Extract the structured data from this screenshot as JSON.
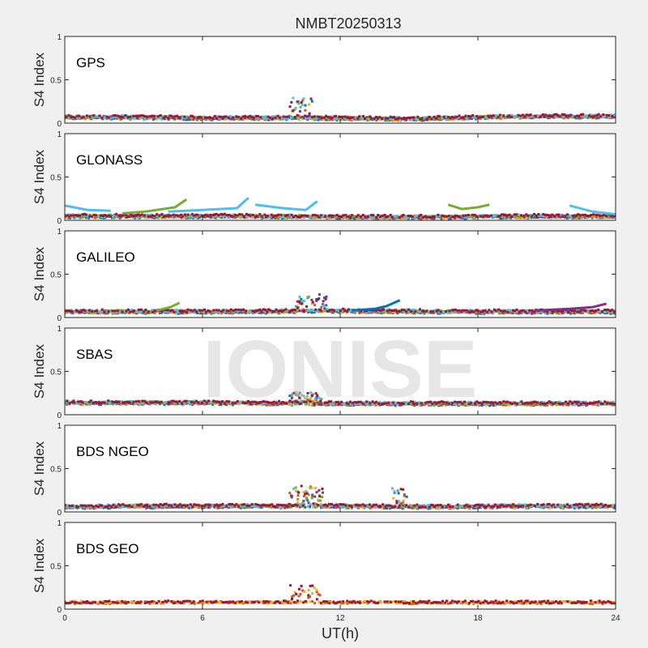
{
  "figure": {
    "title": "NMBT20250313",
    "watermark": "IONISE",
    "xlabel": "UT(h)",
    "ylabel": "S4 Index",
    "background_color": "#f0f0f0",
    "axes_color": "#ffffff"
  },
  "chart_data": [
    {
      "type": "scatter",
      "panel": "GPS",
      "xlim": [
        0,
        24
      ],
      "ylim": [
        0,
        1
      ],
      "xticks": [
        "0",
        "6",
        "12",
        "18",
        "24"
      ],
      "yticks": [
        "0",
        "0.5",
        "1"
      ],
      "baseline": [
        [
          0,
          0.07
        ],
        [
          3,
          0.07
        ],
        [
          6,
          0.06
        ],
        [
          9,
          0.06
        ],
        [
          12,
          0.06
        ],
        [
          15,
          0.05
        ],
        [
          18,
          0.07
        ],
        [
          21,
          0.08
        ],
        [
          24,
          0.08
        ]
      ],
      "events": [
        [
          9.8,
          10.8,
          0.22,
          0.12
        ]
      ],
      "series": [
        {
          "color": "#0072BD",
          "values": []
        },
        {
          "color": "#D95319",
          "values": []
        },
        {
          "color": "#EDB120",
          "values": []
        },
        {
          "color": "#7E2F8E",
          "values": []
        },
        {
          "color": "#77AC30",
          "values": []
        },
        {
          "color": "#4DBEEE",
          "values": []
        },
        {
          "color": "#A2142F",
          "values": []
        }
      ]
    },
    {
      "type": "scatter",
      "panel": "GLONASS",
      "xlim": [
        0,
        24
      ],
      "ylim": [
        0,
        1
      ],
      "xticks": [
        "0",
        "6",
        "12",
        "18",
        "24"
      ],
      "yticks": [
        "0",
        "0.5",
        "1"
      ],
      "baseline": [
        [
          0,
          0.05
        ],
        [
          4,
          0.05
        ],
        [
          8,
          0.05
        ],
        [
          12,
          0.04
        ],
        [
          16,
          0.04
        ],
        [
          20,
          0.05
        ],
        [
          24,
          0.05
        ]
      ],
      "arcs": [
        {
          "color": "#4DBEEE",
          "points": [
            [
              0,
              0.17
            ],
            [
              1,
              0.12
            ],
            [
              2,
              0.11
            ]
          ]
        },
        {
          "color": "#77AC30",
          "points": [
            [
              2.5,
              0.08
            ],
            [
              3.5,
              0.1
            ],
            [
              4.8,
              0.15
            ],
            [
              5.3,
              0.24
            ]
          ]
        },
        {
          "color": "#4DBEEE",
          "points": [
            [
              4.5,
              0.1
            ],
            [
              6,
              0.12
            ],
            [
              7.5,
              0.14
            ],
            [
              8,
              0.26
            ]
          ]
        },
        {
          "color": "#4DBEEE",
          "points": [
            [
              8.3,
              0.18
            ],
            [
              9.5,
              0.14
            ],
            [
              10.5,
              0.12
            ],
            [
              11,
              0.22
            ]
          ]
        },
        {
          "color": "#77AC30",
          "points": [
            [
              16.7,
              0.18
            ],
            [
              17.3,
              0.13
            ],
            [
              18,
              0.15
            ],
            [
              18.5,
              0.18
            ]
          ]
        },
        {
          "color": "#4DBEEE",
          "points": [
            [
              22,
              0.17
            ],
            [
              23,
              0.1
            ],
            [
              24,
              0.07
            ]
          ]
        }
      ],
      "series": [
        {
          "color": "#0072BD",
          "values": []
        },
        {
          "color": "#D95319",
          "values": []
        },
        {
          "color": "#EDB120",
          "values": []
        },
        {
          "color": "#7E2F8E",
          "values": []
        },
        {
          "color": "#77AC30",
          "values": []
        },
        {
          "color": "#4DBEEE",
          "values": []
        },
        {
          "color": "#A2142F",
          "values": []
        }
      ]
    },
    {
      "type": "scatter",
      "panel": "GALILEO",
      "xlim": [
        0,
        24
      ],
      "ylim": [
        0,
        1
      ],
      "xticks": [
        "0",
        "6",
        "12",
        "18",
        "24"
      ],
      "yticks": [
        "0",
        "0.5",
        "1"
      ],
      "baseline": [
        [
          0,
          0.07
        ],
        [
          4,
          0.07
        ],
        [
          8,
          0.07
        ],
        [
          12,
          0.08
        ],
        [
          16,
          0.07
        ],
        [
          20,
          0.07
        ],
        [
          24,
          0.07
        ]
      ],
      "events": [
        [
          10,
          11.4,
          0.18,
          0.08
        ]
      ],
      "arcs": [
        {
          "color": "#0072BD",
          "points": [
            [
              12.5,
              0.08
            ],
            [
              13.5,
              0.1
            ],
            [
              14,
              0.13
            ],
            [
              14.6,
              0.2
            ]
          ]
        },
        {
          "color": "#7E2F8E",
          "points": [
            [
              20.5,
              0.08
            ],
            [
              22,
              0.1
            ],
            [
              23,
              0.12
            ],
            [
              23.6,
              0.16
            ]
          ]
        },
        {
          "color": "#77AC30",
          "points": [
            [
              4,
              0.08
            ],
            [
              4.6,
              0.12
            ],
            [
              5,
              0.17
            ]
          ]
        }
      ],
      "series": [
        {
          "color": "#0072BD",
          "values": []
        },
        {
          "color": "#D95319",
          "values": []
        },
        {
          "color": "#EDB120",
          "values": []
        },
        {
          "color": "#7E2F8E",
          "values": []
        },
        {
          "color": "#77AC30",
          "values": []
        },
        {
          "color": "#4DBEEE",
          "values": []
        },
        {
          "color": "#A2142F",
          "values": []
        }
      ]
    },
    {
      "type": "scatter",
      "panel": "SBAS",
      "xlim": [
        0,
        24
      ],
      "ylim": [
        0,
        1
      ],
      "xticks": [
        "0",
        "6",
        "12",
        "18",
        "24"
      ],
      "yticks": [
        "0",
        "0.5",
        "1"
      ],
      "baseline": [
        [
          0,
          0.14
        ],
        [
          6,
          0.14
        ],
        [
          12,
          0.13
        ],
        [
          18,
          0.13
        ],
        [
          24,
          0.13
        ]
      ],
      "events": [
        [
          9.8,
          11.2,
          0.12,
          0.1
        ]
      ],
      "series": [
        {
          "color": "#0072BD",
          "values": []
        },
        {
          "color": "#D95319",
          "values": []
        },
        {
          "color": "#EDB120",
          "values": []
        },
        {
          "color": "#7E2F8E",
          "values": []
        },
        {
          "color": "#77AC30",
          "values": []
        },
        {
          "color": "#4DBEEE",
          "values": []
        },
        {
          "color": "#A2142F",
          "values": []
        }
      ]
    },
    {
      "type": "scatter",
      "panel": "BDS NGEO",
      "xlim": [
        0,
        24
      ],
      "ylim": [
        0,
        1
      ],
      "xticks": [
        "0",
        "6",
        "12",
        "18",
        "24"
      ],
      "yticks": [
        "0",
        "0.5",
        "1"
      ],
      "baseline": [
        [
          0,
          0.06
        ],
        [
          4,
          0.07
        ],
        [
          8,
          0.07
        ],
        [
          12,
          0.07
        ],
        [
          16,
          0.06
        ],
        [
          20,
          0.07
        ],
        [
          24,
          0.07
        ]
      ],
      "events": [
        [
          9.8,
          11.3,
          0.22,
          0.1
        ],
        [
          14.2,
          14.9,
          0.2,
          0.05
        ]
      ],
      "series": [
        {
          "color": "#0072BD",
          "values": []
        },
        {
          "color": "#D95319",
          "values": []
        },
        {
          "color": "#EDB120",
          "values": []
        },
        {
          "color": "#7E2F8E",
          "values": []
        },
        {
          "color": "#77AC30",
          "values": []
        },
        {
          "color": "#4DBEEE",
          "values": []
        },
        {
          "color": "#A2142F",
          "values": []
        }
      ]
    },
    {
      "type": "scatter",
      "panel": "BDS GEO",
      "xlim": [
        0,
        24
      ],
      "ylim": [
        0,
        1
      ],
      "xticks": [
        "0",
        "6",
        "12",
        "18",
        "24"
      ],
      "yticks": [
        "0",
        "0.5",
        "1"
      ],
      "baseline": [
        [
          0,
          0.08
        ],
        [
          6,
          0.08
        ],
        [
          12,
          0.08
        ],
        [
          18,
          0.08
        ],
        [
          24,
          0.08
        ]
      ],
      "events": [
        [
          9.8,
          11.2,
          0.2,
          0.06
        ]
      ],
      "series": [
        {
          "color": "#D95319",
          "values": []
        },
        {
          "color": "#EDB120",
          "values": []
        },
        {
          "color": "#A2142F",
          "values": []
        }
      ]
    }
  ]
}
